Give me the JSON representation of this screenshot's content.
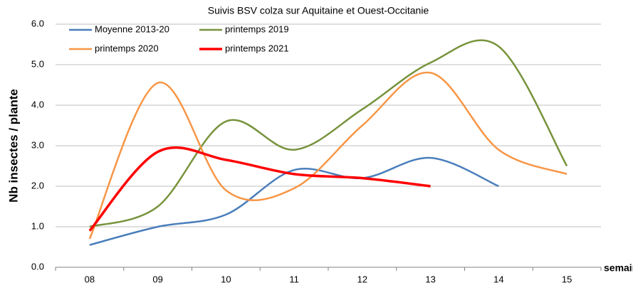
{
  "chart_data": {
    "type": "line",
    "title": "Suivis BSV colza sur Aquitaine et Ouest-Occitanie",
    "y_label": "Nb insectes / plante",
    "x_label": "semaine",
    "categories": [
      "08",
      "09",
      "10",
      "11",
      "12",
      "13",
      "14",
      "15"
    ],
    "series": [
      {
        "name": "Moyenne 2013-20",
        "color": "#4a7ebb",
        "values": [
          0.55,
          1.0,
          1.3,
          2.4,
          2.2,
          2.7,
          2.0,
          null
        ]
      },
      {
        "name": "printemps 2019",
        "color": "#77933c",
        "values": [
          1.0,
          1.5,
          3.6,
          2.9,
          3.9,
          5.05,
          5.45,
          2.5
        ]
      },
      {
        "name": "printemps 2020",
        "color": "#f79646",
        "values": [
          0.7,
          4.55,
          1.9,
          1.95,
          3.5,
          4.8,
          2.9,
          2.3
        ]
      },
      {
        "name": "printemps 2021",
        "color": "#ff0000",
        "values": [
          0.9,
          2.85,
          2.65,
          2.3,
          2.2,
          2.0,
          null,
          null
        ]
      }
    ],
    "ylim": [
      0,
      6
    ],
    "yticks": [
      {
        "value": 0,
        "label": "0.0"
      },
      {
        "value": 1,
        "label": "1.0"
      },
      {
        "value": 2,
        "label": "2.0"
      },
      {
        "value": 3,
        "label": "3.0"
      },
      {
        "value": 4,
        "label": "4.0"
      },
      {
        "value": 5,
        "label": "5.0"
      },
      {
        "value": 6,
        "label": "6.0"
      }
    ],
    "grid": true
  }
}
